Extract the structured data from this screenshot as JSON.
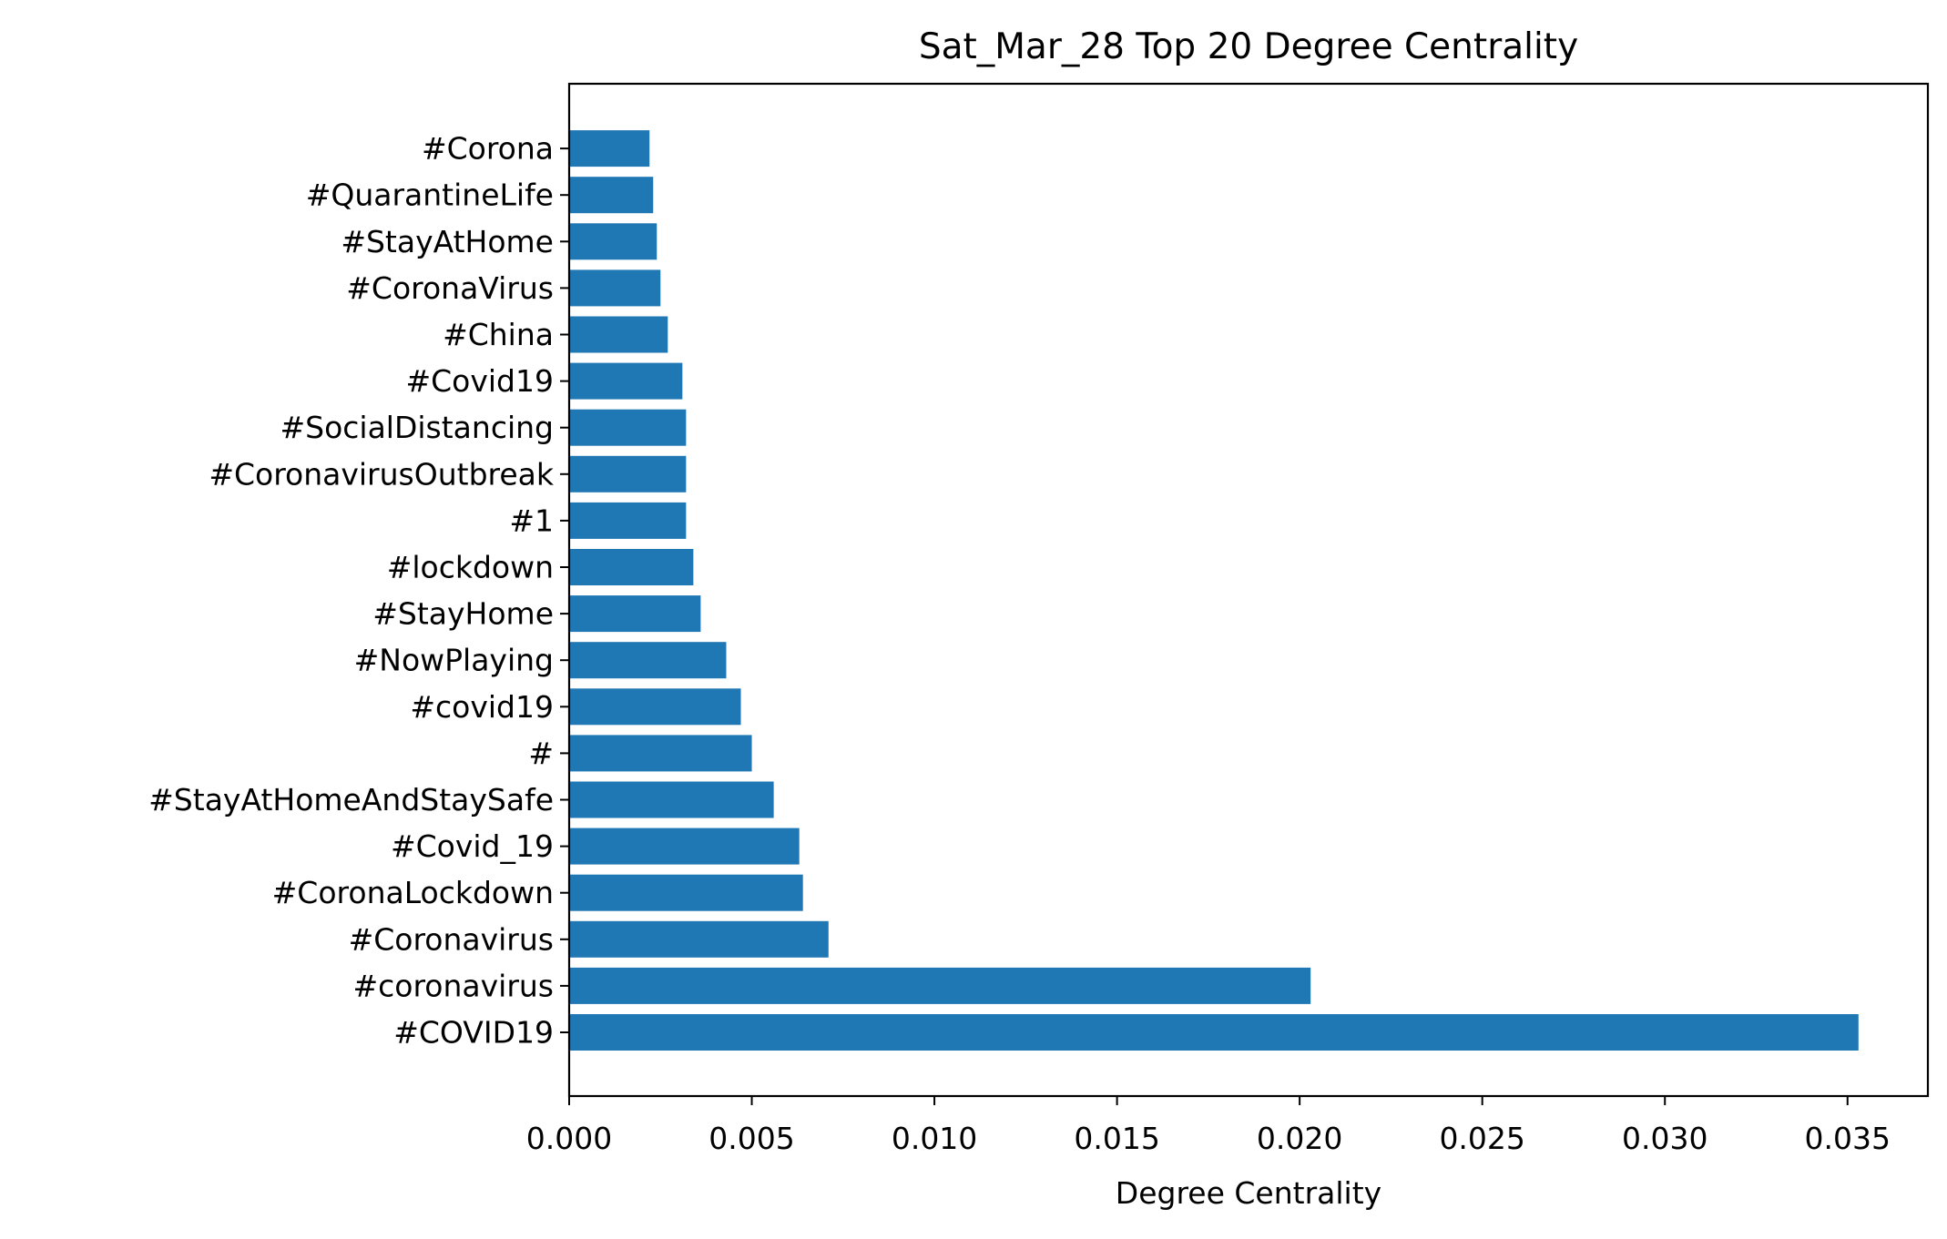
{
  "chart_data": {
    "type": "bar",
    "orientation": "horizontal",
    "title": "Sat_Mar_28 Top 20 Degree Centrality",
    "xlabel": "Degree Centrality",
    "ylabel": "",
    "xlim": [
      0,
      0.0372
    ],
    "xticks": [
      "0.000",
      "0.005",
      "0.010",
      "0.015",
      "0.020",
      "0.025",
      "0.030",
      "0.035"
    ],
    "xtick_values": [
      0,
      0.005,
      0.01,
      0.015,
      0.02,
      0.025,
      0.03,
      0.035
    ],
    "grid": false,
    "legend": "none",
    "bar_color": "#1f77b4",
    "categories": [
      "#COVID19",
      "#coronavirus",
      "#Coronavirus",
      "#CoronaLockdown",
      "#Covid_19",
      "#StayAtHomeAndStaySafe",
      "#",
      "#covid19",
      "#NowPlaying",
      "#StayHome",
      "#lockdown",
      "#1",
      "#CoronavirusOutbreak",
      "#SocialDistancing",
      "#Covid19",
      "#China",
      "#CoronaVirus",
      "#StayAtHome",
      "#QuarantineLife",
      "#Corona"
    ],
    "values": [
      0.0353,
      0.0203,
      0.0071,
      0.0064,
      0.0063,
      0.0056,
      0.005,
      0.0047,
      0.0043,
      0.0036,
      0.0034,
      0.0032,
      0.0032,
      0.0032,
      0.0031,
      0.0027,
      0.0025,
      0.0024,
      0.0023,
      0.0022
    ]
  }
}
